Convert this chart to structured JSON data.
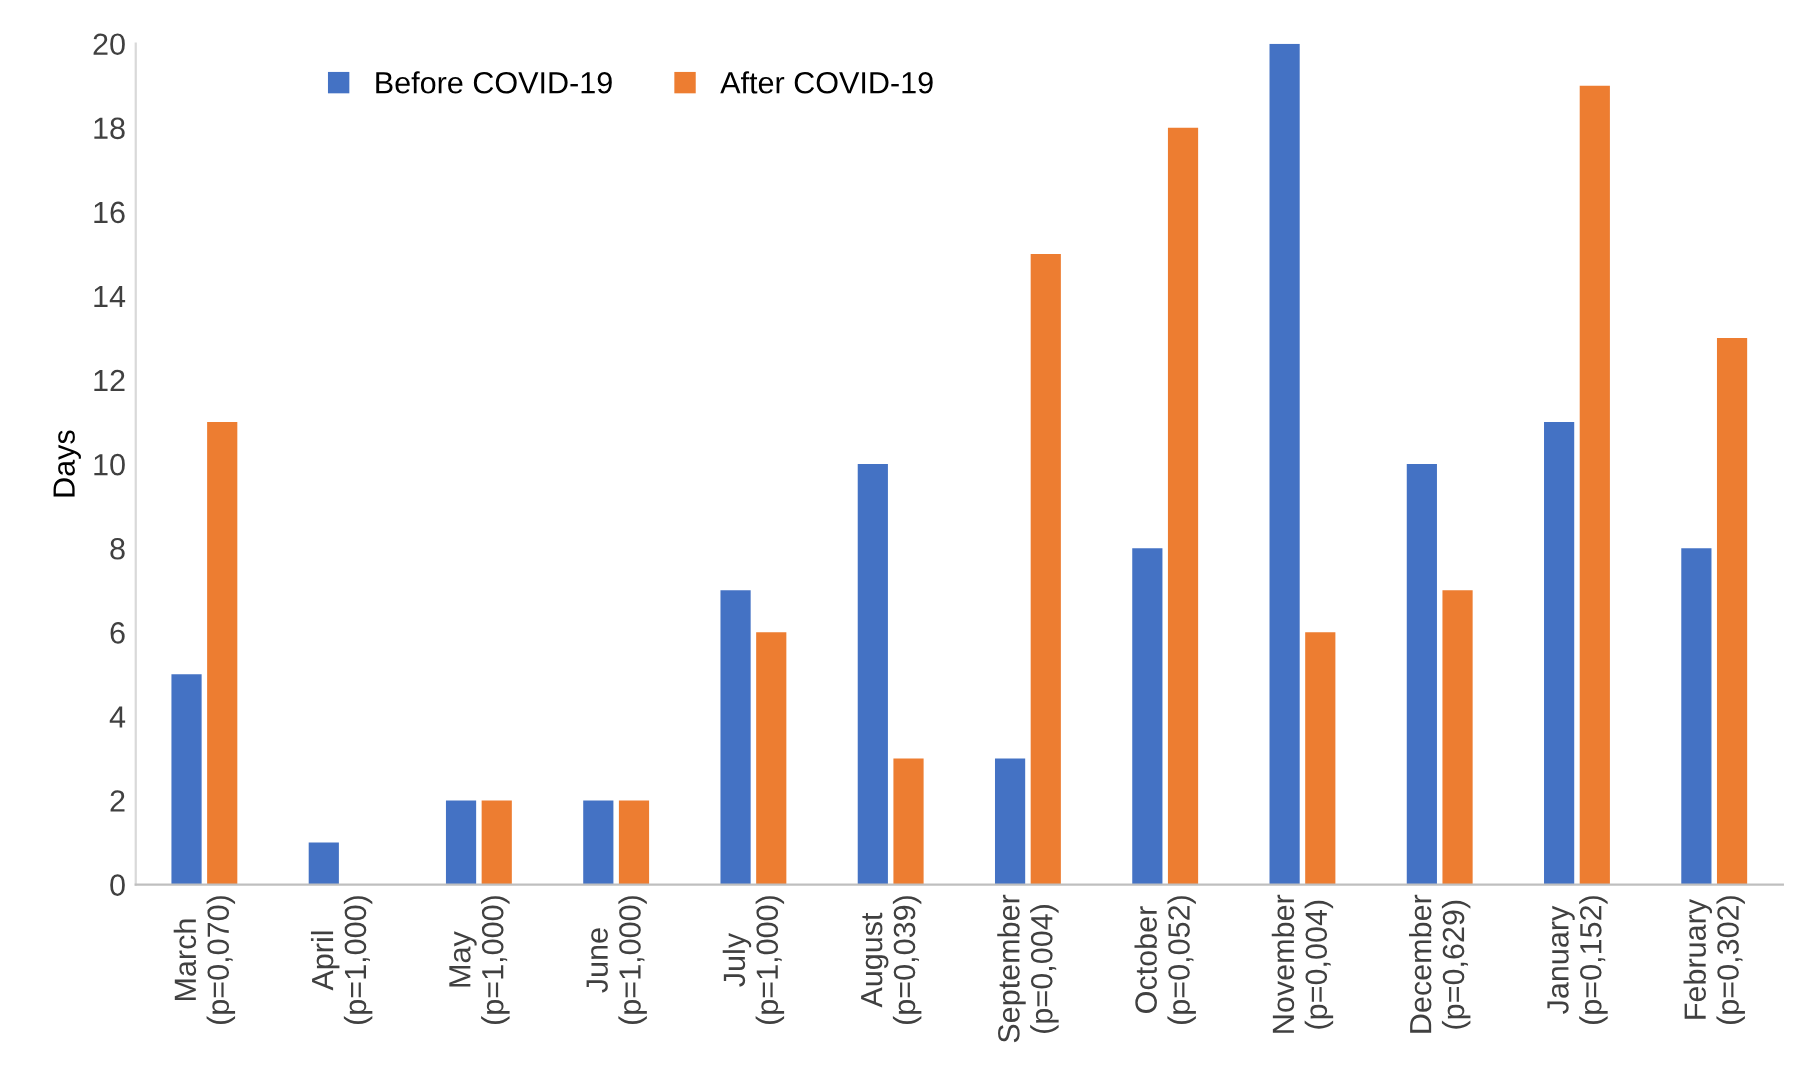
{
  "chart_data": {
    "type": "bar",
    "ylabel": "Days",
    "categories": [
      "March\n(p=0,070)",
      "April\n(p=1,000)",
      "May\n(p=1,000)",
      "June\n(p=1,000)",
      "July\n(p=1,000)",
      "August\n(p=0,039)",
      "September\n(p=0,004)",
      "October\n(p=0,052)",
      "November\n(p=0,004)",
      "December\n(p=0,629)",
      "January\n(p=0,152)",
      "February\n(p=0,302)"
    ],
    "series": [
      {
        "name": "Before COVID-19",
        "color": "#4472c4",
        "values": [
          5,
          1,
          2,
          2,
          7,
          10,
          3,
          8,
          20,
          10,
          11,
          8
        ]
      },
      {
        "name": "After COVID-19",
        "color": "#ed7d31",
        "values": [
          11,
          0,
          2,
          2,
          6,
          3,
          15,
          18,
          6,
          7,
          19,
          13
        ]
      }
    ],
    "ylim": [
      0,
      20
    ],
    "yticks": [
      0,
      2,
      4,
      6,
      8,
      10,
      12,
      14,
      16,
      18,
      20
    ],
    "grid": false,
    "legend": "top left"
  }
}
